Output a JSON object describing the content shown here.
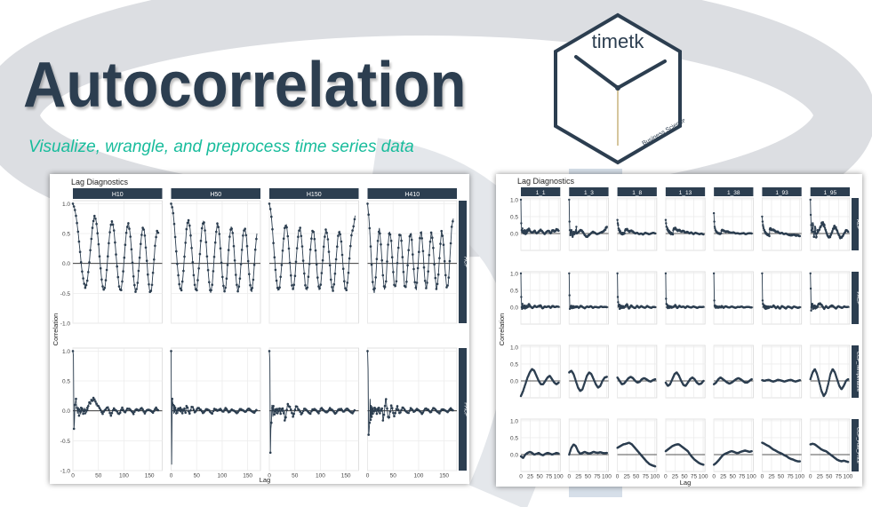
{
  "headline": "Autocorrelation",
  "subtitle": "Visualize, wrangle, and preprocess time series data",
  "logo": {
    "name": "timetk",
    "byline": "Business Science"
  },
  "colors": {
    "headline": "#2c3e50",
    "subtitle": "#18bc9c",
    "strip": "#2c3e50",
    "series": "#2c3e50",
    "logo_stroke": "#2c3e50"
  },
  "chart_data": [
    {
      "type": "line",
      "title": "Lag Diagnostics",
      "xlabel": "Lag",
      "ylabel": "Correlation",
      "columns": [
        "H10",
        "H50",
        "H150",
        "H410"
      ],
      "rows": [
        "ACF",
        "PACF"
      ],
      "xlim": [
        0,
        175
      ],
      "ylim": [
        -1.0,
        1.05
      ],
      "x_ticks": [
        0,
        50,
        100,
        150
      ],
      "y_ticks": [
        -1.0,
        -0.5,
        0.0,
        0.5,
        1.0
      ],
      "n_lags": 168,
      "series": [
        {
          "facet": "H10",
          "acf": [
            1.0,
            0.92,
            0.75,
            0.5,
            0.2,
            -0.1,
            -0.3,
            -0.42,
            -0.3,
            -0.05,
            0.3,
            0.62,
            0.8,
            0.72,
            0.45,
            0.1,
            -0.25,
            -0.45,
            -0.4,
            -0.1,
            0.3,
            0.62,
            0.72,
            0.55,
            0.2,
            -0.15,
            -0.42,
            -0.45,
            -0.2,
            0.2,
            0.55,
            0.68,
            0.52,
            0.15,
            -0.25,
            -0.48,
            -0.4,
            -0.05,
            0.35,
            0.6,
            0.55,
            0.2,
            -0.2,
            -0.48,
            -0.45,
            -0.1,
            0.3,
            0.55,
            0.5
          ],
          "pacf": [
            1.0,
            0.92,
            -0.3,
            -0.2,
            0.1,
            0.15,
            0.2,
            0.1,
            0.05,
            -0.05,
            0.02,
            0.06,
            -0.08,
            0.04,
            0.0,
            -0.06,
            0.05,
            -0.03,
            0.04,
            0.02,
            -0.05,
            0.03,
            0.0,
            0.05,
            -0.04,
            0.02,
            0.01,
            -0.03,
            0.05,
            0.0
          ]
        },
        {
          "facet": "H50",
          "acf": [
            1.0,
            0.9,
            0.6,
            0.2,
            -0.15,
            -0.4,
            -0.45,
            -0.2,
            0.2,
            0.58,
            0.75,
            0.6,
            0.25,
            -0.15,
            -0.42,
            -0.45,
            -0.15,
            0.25,
            0.6,
            0.72,
            0.5,
            0.1,
            -0.28,
            -0.5,
            -0.35,
            0.05,
            0.45,
            0.68,
            0.55,
            0.15,
            -0.25,
            -0.48,
            -0.38,
            0.0,
            0.42,
            0.62,
            0.5,
            0.1,
            -0.3,
            -0.48,
            -0.3,
            0.1,
            0.5,
            0.6,
            0.42,
            0.0,
            -0.35,
            -0.48,
            -0.25,
            0.2,
            0.5
          ],
          "pacf": [
            1.0,
            -0.9,
            0.2,
            0.15,
            0.1,
            -0.05,
            0.08,
            -0.03,
            0.05,
            0.02,
            -0.04,
            0.03,
            0.01,
            -0.05,
            0.04,
            0.0,
            0.03,
            -0.02,
            0.05,
            -0.03,
            0.02,
            0.0,
            -0.04,
            0.03,
            0.01,
            -0.02,
            0.04,
            0.0,
            -0.03,
            0.02
          ]
        },
        {
          "facet": "H150",
          "acf": [
            1.0,
            0.85,
            0.5,
            0.1,
            -0.25,
            -0.45,
            -0.4,
            -0.1,
            0.3,
            0.6,
            0.65,
            0.4,
            0.0,
            -0.35,
            -0.45,
            -0.2,
            0.2,
            0.52,
            0.6,
            0.35,
            -0.05,
            -0.38,
            -0.45,
            -0.15,
            0.25,
            0.55,
            0.52,
            0.2,
            -0.2,
            -0.45,
            -0.35,
            0.0,
            0.38,
            0.58,
            0.45,
            0.1,
            -0.3,
            -0.48,
            -0.3,
            0.1,
            0.45,
            0.55,
            0.35,
            -0.05,
            -0.4,
            -0.45,
            -0.2,
            0.2,
            0.5,
            0.6,
            0.8
          ],
          "pacf": [
            1.0,
            0.85,
            -0.7,
            -0.3,
            -0.2,
            0.1,
            0.05,
            -0.1,
            0.08,
            0.02,
            -0.06,
            0.04,
            0.0,
            -0.05,
            0.03,
            0.02,
            -0.04,
            0.05,
            0.0,
            -0.03,
            0.04,
            0.01,
            -0.05,
            0.02,
            0.03,
            -0.02,
            0.04,
            0.0,
            -0.04,
            0.02
          ]
        },
        {
          "facet": "H410",
          "acf": [
            1.0,
            0.7,
            0.2,
            -0.3,
            -0.5,
            -0.2,
            0.35,
            0.6,
            0.3,
            -0.15,
            -0.45,
            -0.3,
            0.25,
            0.55,
            0.4,
            -0.05,
            -0.4,
            -0.35,
            0.15,
            0.5,
            0.45,
            0.0,
            -0.38,
            -0.4,
            0.05,
            0.45,
            0.5,
            0.1,
            -0.3,
            -0.45,
            -0.05,
            0.4,
            0.55,
            0.2,
            -0.25,
            -0.45,
            -0.15,
            0.3,
            0.55,
            0.3,
            -0.15,
            -0.45,
            -0.25,
            0.2,
            0.55,
            0.4,
            -0.05,
            -0.4,
            -0.35,
            0.1,
            0.6,
            0.75
          ],
          "pacf": [
            1.0,
            0.7,
            -0.4,
            -0.35,
            -0.2,
            0.2,
            -0.15,
            0.1,
            -0.1,
            0.08,
            -0.05,
            0.06,
            0.0,
            -0.04,
            0.05,
            -0.02,
            0.03,
            0.0,
            -0.05,
            0.04,
            0.02,
            -0.03,
            0.05,
            0.0,
            -0.04,
            0.03,
            0.01,
            -0.02,
            0.04,
            0.0
          ]
        }
      ]
    },
    {
      "type": "line",
      "title": "Lag Diagnostics",
      "xlabel": "Lag",
      "ylabel": "Correlation",
      "columns": [
        "1_1",
        "1_3",
        "1_8",
        "1_13",
        "1_38",
        "1_93",
        "1_95"
      ],
      "rows": [
        "ACF",
        "PACF",
        "CCF_Temperature",
        "CCF_Fuel_Price"
      ],
      "xlim": [
        0,
        105
      ],
      "ylim": [
        -0.5,
        1.05
      ],
      "x_ticks": [
        0,
        25,
        50,
        75,
        100
      ],
      "x_tick_labels": [
        "0",
        "25",
        "50",
        "75",
        "100"
      ],
      "y_ticks": [
        0.0,
        0.5,
        1.0
      ],
      "y_tick_labels": [
        "0.0",
        "0.5",
        "1.0"
      ],
      "n_lags": 100,
      "series": [
        {
          "facet": "1_1",
          "acf": [
            1.0,
            0.3,
            0.1,
            0.05,
            0.15,
            0.05,
            0.02,
            0.08,
            0.0,
            0.05,
            0.1,
            0.05,
            -0.02,
            0.05,
            0.08,
            0.0,
            0.1,
            0.05,
            0.12,
            0.08
          ],
          "pacf": [
            1.0,
            0.3,
            0.0,
            -0.05,
            0.1,
            0.02,
            -0.03,
            0.04,
            0.0,
            0.03,
            0.05,
            -0.04,
            0.02,
            0.0,
            0.03,
            -0.02,
            0.04,
            0.0,
            0.02,
            0.01
          ],
          "ccf_temperature": [
            -0.45,
            -0.3,
            -0.1,
            0.1,
            0.25,
            0.35,
            0.3,
            0.15,
            0.0,
            -0.1,
            -0.1,
            0.0,
            0.1,
            0.15,
            0.05,
            -0.05,
            -0.1,
            -0.05
          ],
          "ccf_fuel_price": [
            -0.05,
            -0.1,
            0.0,
            0.05,
            0.08,
            0.05,
            0.0,
            0.02,
            0.05,
            0.0,
            -0.02,
            0.02,
            0.05,
            0.03,
            0.0,
            0.02,
            0.05,
            0.03
          ]
        },
        {
          "facet": "1_3",
          "acf": [
            1.0,
            0.35,
            0.1,
            -0.05,
            0.0,
            0.05,
            0.1,
            0.05,
            -0.05,
            -0.1,
            -0.05,
            0.0,
            0.05,
            0.02,
            -0.02,
            0.0,
            0.03,
            0.05,
            0.1,
            0.2
          ],
          "pacf": [
            1.0,
            0.35,
            -0.05,
            0.0,
            0.03,
            -0.02,
            0.04,
            0.0,
            -0.03,
            0.02,
            0.0,
            0.03,
            -0.02,
            0.01,
            0.0,
            -0.01,
            0.02,
            0.0,
            0.01,
            0.0
          ],
          "ccf_temperature": [
            0.25,
            0.3,
            0.2,
            0.0,
            -0.2,
            -0.3,
            -0.25,
            -0.05,
            0.15,
            0.25,
            0.2,
            0.05,
            -0.1,
            -0.2,
            -0.15,
            0.0,
            0.1,
            0.12
          ],
          "ccf_fuel_price": [
            0.0,
            0.2,
            0.3,
            0.25,
            0.1,
            0.02,
            0.05,
            0.08,
            0.05,
            0.03,
            0.05,
            0.08,
            0.06,
            0.05,
            0.07,
            0.05,
            0.04,
            0.05
          ]
        },
        {
          "facet": "1_8",
          "acf": [
            0.4,
            0.3,
            0.25,
            0.15,
            0.1,
            0.12,
            0.05,
            0.08,
            0.05,
            0.0,
            0.02,
            -0.02,
            0.0,
            -0.03,
            0.02,
            0.0,
            -0.02,
            0.0,
            0.02,
            0.0
          ],
          "pacf": [
            1.0,
            0.3,
            0.15,
            0.05,
            0.02,
            0.08,
            -0.05,
            0.05,
            0.0,
            -0.03,
            0.04,
            -0.02,
            0.03,
            0.0,
            -0.02,
            0.03,
            0.0,
            -0.02,
            0.01,
            0.0
          ],
          "ccf_temperature": [
            0.1,
            0.0,
            -0.1,
            -0.08,
            0.0,
            0.08,
            0.12,
            0.08,
            0.0,
            -0.05,
            -0.03,
            0.05,
            0.08,
            0.05,
            0.0,
            -0.02,
            0.02,
            0.05
          ],
          "ccf_fuel_price": [
            0.2,
            0.25,
            0.3,
            0.32,
            0.35,
            0.3,
            0.2,
            0.1,
            0.0,
            -0.1,
            -0.2,
            -0.28,
            -0.32,
            -0.35
          ]
        },
        {
          "facet": "1_13",
          "acf": [
            0.4,
            0.3,
            0.2,
            0.2,
            0.12,
            0.15,
            0.08,
            0.1,
            0.05,
            0.08,
            0.02,
            0.05,
            0.0,
            0.03,
            -0.02,
            0.02,
            0.0,
            -0.02,
            0.0,
            -0.03
          ],
          "pacf": [
            1.0,
            0.25,
            0.1,
            0.08,
            0.0,
            0.06,
            -0.03,
            0.04,
            0.0,
            0.02,
            -0.02,
            0.03,
            0.0,
            -0.01,
            0.02,
            0.0,
            -0.02,
            0.01,
            0.0,
            0.01
          ],
          "ccf_temperature": [
            -0.05,
            -0.15,
            -0.1,
            0.05,
            0.2,
            0.25,
            0.15,
            0.0,
            -0.12,
            -0.15,
            -0.05,
            0.05,
            0.1,
            0.05,
            -0.05,
            -0.1,
            -0.08,
            0.0
          ],
          "ccf_fuel_price": [
            0.1,
            0.15,
            0.2,
            0.25,
            0.28,
            0.3,
            0.3,
            0.25,
            0.2,
            0.15,
            0.1,
            0.0,
            -0.08,
            -0.15,
            -0.2,
            -0.25,
            -0.28,
            -0.3
          ]
        },
        {
          "facet": "1_38",
          "acf": [
            0.6,
            0.35,
            0.2,
            0.15,
            0.1,
            0.08,
            0.05,
            0.06,
            0.03,
            0.02,
            0.03,
            0.0,
            0.01,
            -0.01,
            0.0,
            0.01,
            -0.02,
            0.0,
            0.01,
            0.0
          ],
          "pacf": [
            1.0,
            0.2,
            0.05,
            0.02,
            0.04,
            -0.02,
            0.03,
            0.0,
            -0.01,
            0.02,
            0.0,
            -0.02,
            0.01,
            0.0,
            0.02,
            -0.01,
            0.0,
            0.01,
            0.0,
            -0.01
          ],
          "ccf_temperature": [
            -0.1,
            -0.05,
            0.05,
            0.1,
            0.05,
            0.0,
            -0.05,
            -0.08,
            -0.05,
            0.0,
            0.05,
            0.08,
            0.05,
            0.0,
            -0.05,
            -0.05,
            0.0,
            0.05
          ],
          "ccf_fuel_price": [
            -0.3,
            -0.25,
            -0.18,
            -0.1,
            -0.02,
            0.02,
            0.05,
            0.08,
            0.1,
            0.08,
            0.05,
            0.05,
            0.08,
            0.1,
            0.12,
            0.1,
            0.08,
            0.1
          ]
        },
        {
          "facet": "1_93",
          "acf": [
            0.5,
            0.35,
            0.25,
            0.2,
            0.15,
            0.1,
            0.1,
            0.05,
            0.05,
            0.0,
            0.02,
            -0.02,
            0.0,
            -0.03,
            -0.05,
            -0.05,
            -0.03,
            -0.06,
            -0.05,
            -0.08
          ],
          "pacf": [
            1.0,
            0.2,
            0.1,
            0.08,
            0.02,
            0.0,
            0.05,
            -0.03,
            0.02,
            -0.05,
            0.03,
            0.0,
            -0.04,
            0.02,
            0.0,
            -0.03,
            0.02,
            0.0,
            -0.02,
            0.0
          ],
          "ccf_temperature": [
            0.02,
            0.0,
            0.02,
            0.03,
            0.0,
            -0.02,
            0.0,
            0.03,
            0.02,
            0.0,
            -0.02,
            0.0,
            0.02,
            0.03,
            0.0,
            -0.02,
            0.0,
            0.02
          ],
          "ccf_fuel_price": [
            0.35,
            0.32,
            0.28,
            0.25,
            0.2,
            0.15,
            0.12,
            0.08,
            0.05,
            0.02,
            -0.02,
            -0.05,
            -0.1,
            -0.13,
            -0.15,
            -0.18,
            -0.2,
            -0.2
          ]
        },
        {
          "facet": "1_95",
          "acf": [
            1.0,
            0.55,
            0.25,
            0.1,
            0.05,
            0.15,
            0.3,
            0.25,
            0.05,
            -0.1,
            -0.1,
            0.05,
            0.2,
            0.15,
            0.0,
            -0.12,
            -0.1,
            0.0,
            0.1,
            0.05
          ],
          "pacf": [
            1.0,
            0.55,
            -0.1,
            0.0,
            0.08,
            0.1,
            0.05,
            -0.05,
            0.03,
            -0.03,
            0.02,
            0.05,
            0.0,
            -0.04,
            0.03,
            0.0,
            -0.02,
            0.02,
            0.0,
            0.01
          ],
          "ccf_temperature": [
            0.05,
            0.25,
            0.35,
            0.2,
            -0.05,
            -0.3,
            -0.45,
            -0.35,
            -0.1,
            0.2,
            0.35,
            0.25,
            0.05,
            -0.15,
            -0.25,
            -0.15,
            0.0,
            0.05
          ],
          "ccf_fuel_price": [
            0.3,
            0.32,
            0.3,
            0.25,
            0.2,
            0.15,
            0.12,
            0.1,
            0.05,
            0.0,
            -0.05,
            -0.1,
            -0.15,
            -0.18,
            -0.2,
            -0.18,
            -0.2,
            -0.22
          ]
        }
      ]
    }
  ]
}
